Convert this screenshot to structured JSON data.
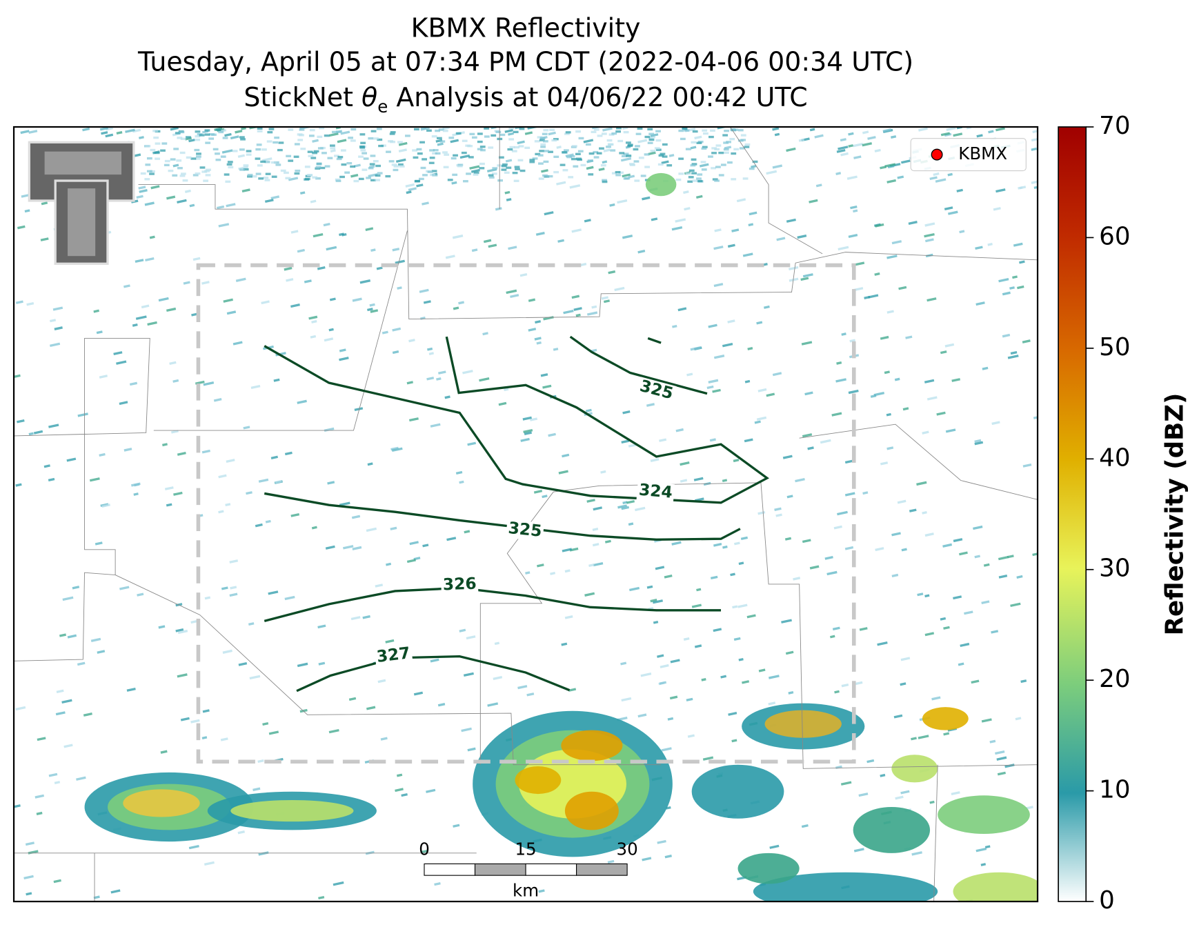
{
  "title": {
    "line1": "KBMX Reflectivity",
    "line2": "Tuesday, April 05 at 07:34 PM CDT (2022-04-06 00:34 UTC)",
    "line3": {
      "before": "StickNet ",
      "symbol": "θ",
      "subscript": "e",
      "after": " Analysis at 04/06/22 00:42 UTC"
    }
  },
  "legend": {
    "label": "KBMX",
    "color": "#ff0000"
  },
  "colorbar": {
    "label": "Reflectivity (dBZ)",
    "lim": [
      0,
      70
    ],
    "ticks": [
      0,
      10,
      20,
      30,
      40,
      50,
      60,
      70
    ]
  },
  "scale_bar": {
    "ticks": [
      0,
      15,
      30
    ],
    "unit": "km"
  },
  "contours": [
    {
      "label": 325
    },
    {
      "label": 324
    },
    {
      "label": 325
    },
    {
      "label": 326
    },
    {
      "label": 327
    }
  ]
}
